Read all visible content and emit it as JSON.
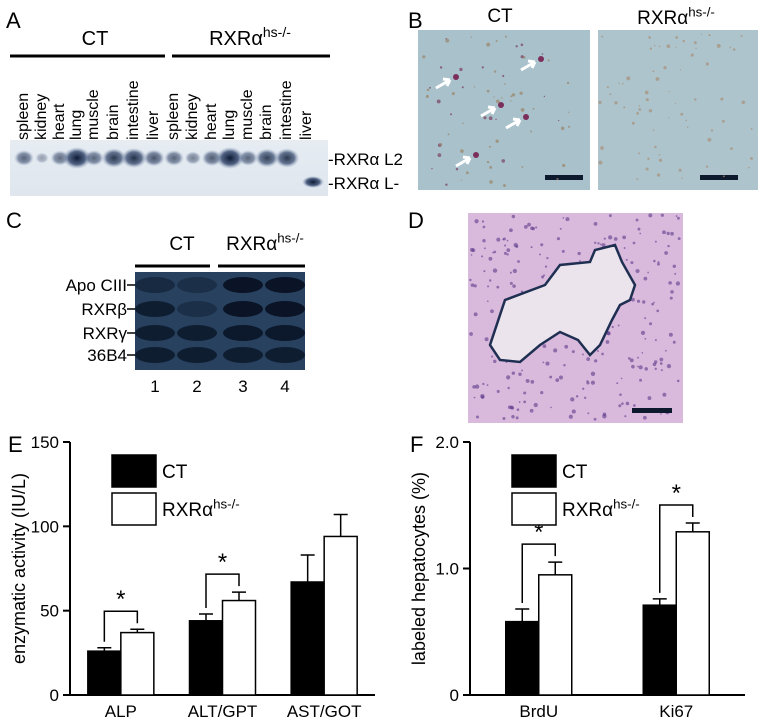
{
  "panels": {
    "A": {
      "label": "A",
      "groups": [
        {
          "name": "CT"
        },
        {
          "name": "RXRα",
          "sup": "hs-/-"
        }
      ],
      "lanes": [
        "spleen",
        "kidney",
        "heart",
        "lung",
        "muscle",
        "brain",
        "intestine",
        "liver",
        "spleen",
        "kidney",
        "heart",
        "lung",
        "muscle",
        "brain",
        "intestine",
        "liver"
      ],
      "bands": [
        "-RXRα L2",
        "-RXRα L-"
      ]
    },
    "B": {
      "label": "B",
      "columns": [
        {
          "name": "CT"
        },
        {
          "name": "RXRα",
          "sup": "hs-/-"
        }
      ]
    },
    "C": {
      "label": "C",
      "groups": [
        {
          "name": "CT"
        },
        {
          "name": "RXRα",
          "sup": "hs-/-"
        }
      ],
      "rows": [
        "Apo CIII",
        "RXRβ",
        "RXRγ",
        "36B4"
      ],
      "lanes": [
        "1",
        "2",
        "3",
        "4"
      ]
    },
    "D": {
      "label": "D"
    }
  },
  "chart_data": [
    {
      "type": "bar",
      "panel_label": "E",
      "ylabel": "enzymatic activity (IU/L)",
      "categories": [
        "ALP",
        "ALT/GPT",
        "AST/GOT"
      ],
      "series": [
        {
          "name": "CT",
          "color": "#000000",
          "values": [
            26,
            44,
            67
          ],
          "errors": [
            2,
            4,
            16
          ]
        },
        {
          "name": "RXRα",
          "name_sup": "hs-/-",
          "color": "#ffffff",
          "values": [
            37,
            56,
            94
          ],
          "errors": [
            2,
            5,
            13
          ]
        }
      ],
      "ylim": [
        0,
        150
      ],
      "yticks": [
        0,
        50,
        100,
        150
      ],
      "significant": [
        true,
        true,
        false
      ],
      "significance_label": "*"
    },
    {
      "type": "bar",
      "panel_label": "F",
      "ylabel": "labeled hepatocytes (%)",
      "categories": [
        "BrdU",
        "Ki67"
      ],
      "series": [
        {
          "name": "CT",
          "color": "#000000",
          "values": [
            0.58,
            0.71
          ],
          "errors": [
            0.1,
            0.05
          ]
        },
        {
          "name": "RXRα",
          "name_sup": "hs-/-",
          "color": "#ffffff",
          "values": [
            0.95,
            1.29
          ],
          "errors": [
            0.1,
            0.07
          ]
        }
      ],
      "ylim": [
        0,
        2
      ],
      "yticks": [
        0,
        {
          "value": 1,
          "label": "1.0"
        },
        {
          "value": 2,
          "label": "2.0"
        }
      ],
      "significant": [
        true,
        true
      ],
      "significance_label": "*"
    }
  ]
}
